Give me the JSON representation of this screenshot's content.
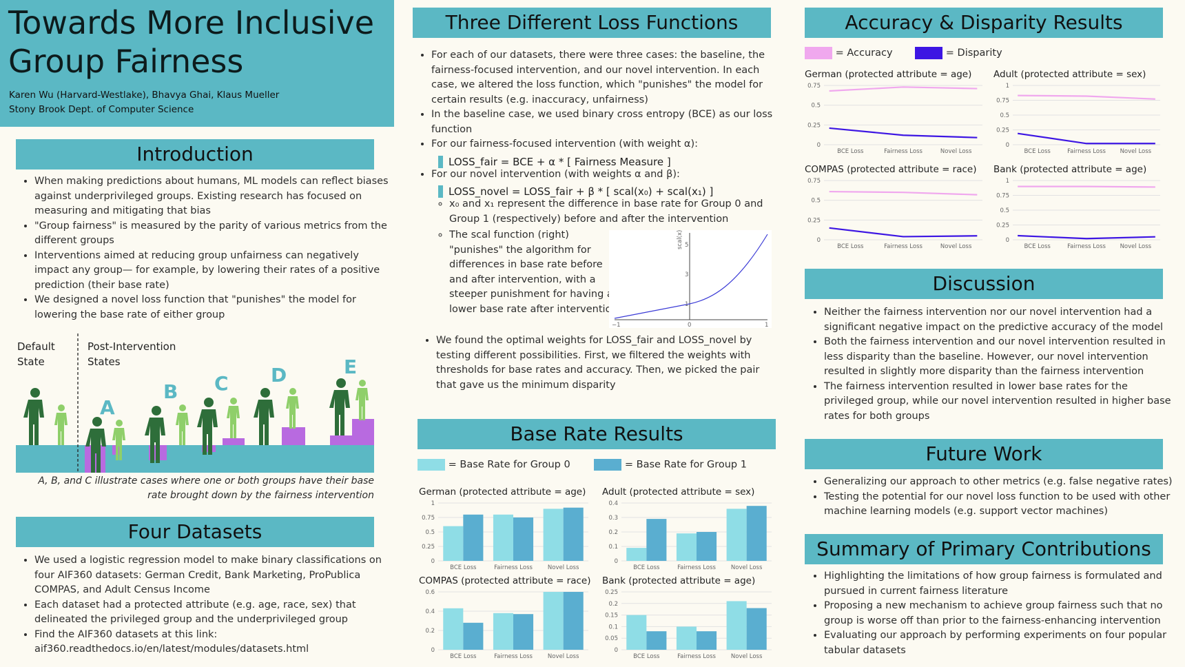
{
  "title": {
    "line1": "Towards More Inclusive",
    "line2": "Group Fairness",
    "authors": "Karen Wu (Harvard-Westlake), Bhavya Ghai, Klaus Mueller",
    "affiliation": "Stony Brook Dept. of Computer Science"
  },
  "colors": {
    "header": "#5bb8c4",
    "group0": "#8fdde6",
    "group1": "#5aaed0",
    "accuracy": "#f0a8ee",
    "disparity": "#3d16e3",
    "figure_dark": "#2e6e3a",
    "figure_light": "#8fcf6a",
    "pedestal": "#b86ae0"
  },
  "introduction": {
    "heading": "Introduction",
    "bullets": [
      "When making predictions about humans, ML models can reflect biases against underprivileged groups. Existing research has focused on measuring and mitigating that bias",
      "\"Group fairness\" is measured by the parity of various metrics from the different groups",
      "Interventions aimed at reducing group unfairness can negatively impact any group— for example, by lowering their rates of a positive prediction (their base rate)",
      "We designed a novel loss function that \"punishes\" the model for lowering the base rate of either group"
    ],
    "fig_default_label": "Default State",
    "fig_post_label": "Post-Intervention States",
    "fig_letters": [
      "A",
      "B",
      "C",
      "D",
      "E"
    ],
    "fig_caption": "A, B, and C illustrate cases where one or both groups have their base rate brought down by the fairness intervention"
  },
  "datasets": {
    "heading": "Four Datasets",
    "bullets": [
      "We used a logistic regression model to make binary classifications on four AIF360 datasets: German Credit, Bank Marketing, ProPublica COMPAS, and Adult Census Income",
      "Each dataset had a protected attribute (e.g. age, race, sex) that delineated the privileged group and the underprivileged group",
      "Find the AIF360 datasets at this link: aif360.readthedocs.io/en/latest/modules/datasets.html"
    ]
  },
  "loss": {
    "heading": "Three Different Loss Functions",
    "b1": "For each of our datasets, there were three cases: the baseline, the fairness-focused intervention, and our novel intervention. In each case, we altered the loss function, which \"punishes\" the model for certain results (e.g. inaccuracy, unfairness)",
    "b2": "In the baseline case, we used binary cross entropy (BCE) as our loss function",
    "b3": "For our fairness-focused intervention (with weight α):",
    "formula1": "LOSS_fair = BCE + α * [ Fairness Measure ]",
    "b4": "For our novel intervention (with weights α and β):",
    "formula2": "LOSS_novel = LOSS_fair + β * [ scal(x₀) + scal(x₁) ]",
    "sub1": "x₀ and x₁ represent the difference in base rate for Group 0 and Group 1 (respectively) before and after the intervention",
    "sub2": "The scal function (right) \"punishes\" the algorithm for differences in base rate before and after intervention, with a steeper punishment for having a lower base rate after intervention",
    "b5": "We found the optimal weights for LOSS_fair and LOSS_novel by testing different possibilities. First, we filtered the weights with thresholds for base rates and accuracy. Then, we picked the pair that gave us the minimum disparity",
    "scal_ylabel": "scal(x)",
    "scal_xticks": [
      "−1",
      "0",
      "1"
    ],
    "scal_yticks": [
      "1",
      "3",
      "5"
    ]
  },
  "base_rate": {
    "heading": "Base Rate Results",
    "legend0": "= Base Rate for Group 0",
    "legend1": "= Base Rate for Group 1"
  },
  "accuracy": {
    "heading": "Accuracy & Disparity Results",
    "legend_acc": "= Accuracy",
    "legend_disp": "= Disparity"
  },
  "discussion": {
    "heading": "Discussion",
    "bullets": [
      "Neither the fairness intervention nor our novel intervention had a significant negative impact on the predictive accuracy of the model",
      "Both the fairness intervention and our novel intervention resulted in less disparity than the baseline. However, our novel intervention resulted in slightly more disparity than the fairness intervention",
      "The fairness intervention resulted in lower base rates for the privileged group, while our novel intervention resulted in higher base rates for both groups"
    ]
  },
  "future": {
    "heading": "Future Work",
    "bullets": [
      "Generalizing our approach to other metrics (e.g. false negative rates)",
      "Testing the potential for our novel loss function to be used with other machine learning models (e.g. support vector machines)"
    ]
  },
  "summary": {
    "heading": "Summary of Primary Contributions",
    "bullets": [
      "Highlighting the limitations of how group fairness is formulated and pursued in current fairness literature",
      "Proposing a new mechanism to achieve group fairness such that no group is worse off than prior to the fairness-enhancing intervention",
      "Evaluating our approach by performing experiments on four popular tabular datasets"
    ]
  },
  "chart_data": [
    {
      "id": "br-german",
      "type": "bar",
      "title": "German (protected attribute = age)",
      "categories": [
        "BCE Loss",
        "Fairness Loss",
        "Novel Loss"
      ],
      "series": [
        {
          "values": [
            0.6,
            0.8,
            0.9
          ]
        },
        {
          "values": [
            0.8,
            0.75,
            0.92
          ]
        }
      ],
      "ylim": [
        0,
        1
      ],
      "yticks": [
        "0",
        "0.25",
        "0.5",
        "0.75",
        "1"
      ]
    },
    {
      "id": "br-adult",
      "type": "bar",
      "title": "Adult (protected attribute = sex)",
      "categories": [
        "BCE Loss",
        "Fairness Loss",
        "Novel Loss"
      ],
      "series": [
        {
          "values": [
            0.09,
            0.19,
            0.36
          ]
        },
        {
          "values": [
            0.29,
            0.2,
            0.38
          ]
        }
      ],
      "ylim": [
        0,
        0.4
      ],
      "yticks": [
        "0",
        "0.1",
        "0.2",
        "0.3",
        "0.4"
      ]
    },
    {
      "id": "br-compas",
      "type": "bar",
      "title": "COMPAS (protected attribute = race)",
      "categories": [
        "BCE Loss",
        "Fairness Loss",
        "Novel Loss"
      ],
      "series": [
        {
          "values": [
            0.43,
            0.38,
            0.6
          ]
        },
        {
          "values": [
            0.28,
            0.37,
            0.6
          ]
        }
      ],
      "ylim": [
        0,
        0.6
      ],
      "yticks": [
        "0",
        "0.2",
        "0.4",
        "0.6"
      ]
    },
    {
      "id": "br-bank",
      "type": "bar",
      "title": "Bank (protected attribute = age)",
      "categories": [
        "BCE Loss",
        "Fairness Loss",
        "Novel Loss"
      ],
      "series": [
        {
          "values": [
            0.15,
            0.1,
            0.21
          ]
        },
        {
          "values": [
            0.08,
            0.08,
            0.18
          ]
        }
      ],
      "ylim": [
        0,
        0.25
      ],
      "yticks": [
        "0",
        "0.05",
        "0.1",
        "0.15",
        "0.2",
        "0.25"
      ]
    },
    {
      "id": "ad-german",
      "type": "line",
      "title": "German (protected attribute = age)",
      "categories": [
        "BCE Loss",
        "Fairness Loss",
        "Novel Loss"
      ],
      "series": [
        {
          "values": [
            0.68,
            0.73,
            0.71
          ]
        },
        {
          "values": [
            0.21,
            0.12,
            0.09
          ]
        }
      ],
      "ylim": [
        0,
        0.75
      ],
      "yticks": [
        "0",
        "0.25",
        "0.5",
        "0.75"
      ]
    },
    {
      "id": "ad-adult",
      "type": "line",
      "title": "Adult (protected attribute = sex)",
      "categories": [
        "BCE Loss",
        "Fairness Loss",
        "Novel Loss"
      ],
      "series": [
        {
          "values": [
            0.83,
            0.82,
            0.77
          ]
        },
        {
          "values": [
            0.19,
            0.02,
            0.02
          ]
        }
      ],
      "ylim": [
        0,
        1
      ],
      "yticks": [
        "0",
        "0.25",
        "0.5",
        "0.75",
        "1"
      ]
    },
    {
      "id": "ad-compas",
      "type": "line",
      "title": "COMPAS (protected attribute = race)",
      "categories": [
        "BCE Loss",
        "Fairness Loss",
        "Novel Loss"
      ],
      "series": [
        {
          "values": [
            0.61,
            0.6,
            0.57
          ]
        },
        {
          "values": [
            0.15,
            0.04,
            0.05
          ]
        }
      ],
      "ylim": [
        0,
        0.75
      ],
      "yticks": [
        "0",
        "0.25",
        "0.5",
        "0.75"
      ]
    },
    {
      "id": "ad-bank",
      "type": "line",
      "title": "Bank (protected attribute = age)",
      "categories": [
        "BCE Loss",
        "Fairness Loss",
        "Novel Loss"
      ],
      "series": [
        {
          "values": [
            0.9,
            0.9,
            0.89
          ]
        },
        {
          "values": [
            0.07,
            0.02,
            0.05
          ]
        }
      ],
      "ylim": [
        0,
        1
      ],
      "yticks": [
        "0",
        "0.25",
        "0.5",
        "0.75",
        "1"
      ]
    }
  ]
}
